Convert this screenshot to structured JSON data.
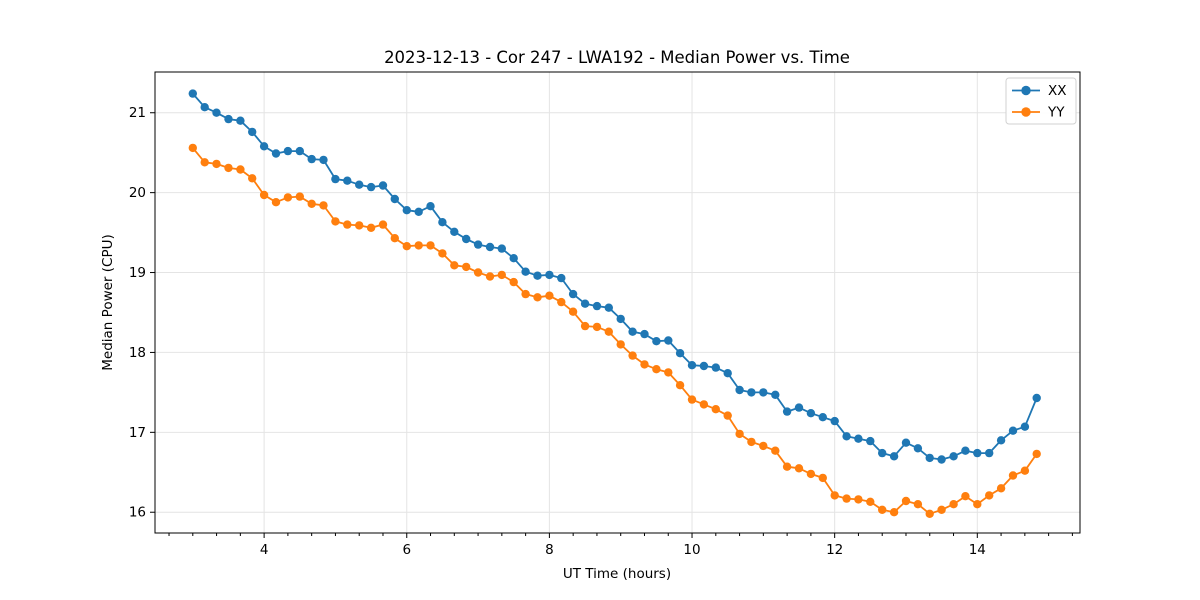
{
  "page": {
    "background": "#ffffff"
  },
  "chart": {
    "title": "2023-12-13 - Cor 247 - LWA192 - Median Power vs. Time",
    "xlabel": "UT Time (hours)",
    "ylabel": "Median Power (CPU)"
  },
  "chart_data": {
    "type": "line",
    "title": "2023-12-13 - Cor 247 - LWA192 - Median Power vs. Time",
    "xlabel": "UT Time (hours)",
    "ylabel": "Median Power (CPU)",
    "x": [
      3.0,
      3.167,
      3.333,
      3.5,
      3.667,
      3.833,
      4.0,
      4.167,
      4.333,
      4.5,
      4.667,
      4.833,
      5.0,
      5.167,
      5.333,
      5.5,
      5.667,
      5.833,
      6.0,
      6.167,
      6.333,
      6.5,
      6.667,
      6.833,
      7.0,
      7.167,
      7.333,
      7.5,
      7.667,
      7.833,
      8.0,
      8.167,
      8.333,
      8.5,
      8.667,
      8.833,
      9.0,
      9.167,
      9.333,
      9.5,
      9.667,
      9.833,
      10.0,
      10.167,
      10.333,
      10.5,
      10.667,
      10.833,
      11.0,
      11.167,
      11.333,
      11.5,
      11.667,
      11.833,
      12.0,
      12.167,
      12.333,
      12.5,
      12.667,
      12.833,
      13.0,
      13.167,
      13.333,
      13.5,
      13.667,
      13.833,
      14.0,
      14.167,
      14.333,
      14.5,
      14.667,
      14.833
    ],
    "series": [
      {
        "name": "XX",
        "color": "#1f77b4",
        "values": [
          21.24,
          21.07,
          21.0,
          20.92,
          20.9,
          20.76,
          20.58,
          20.49,
          20.52,
          20.52,
          20.42,
          20.41,
          20.17,
          20.15,
          20.1,
          20.07,
          20.09,
          19.92,
          19.78,
          19.76,
          19.83,
          19.63,
          19.51,
          19.42,
          19.35,
          19.32,
          19.3,
          19.18,
          19.01,
          18.96,
          18.97,
          18.93,
          18.73,
          18.61,
          18.58,
          18.56,
          18.42,
          18.26,
          18.23,
          18.14,
          18.15,
          17.99,
          17.84,
          17.83,
          17.81,
          17.74,
          17.53,
          17.5,
          17.5,
          17.47,
          17.26,
          17.31,
          17.24,
          17.19,
          17.14,
          16.95,
          16.92,
          16.89,
          16.74,
          16.7,
          16.87,
          16.8,
          16.68,
          16.66,
          16.7,
          16.77,
          16.74,
          16.74,
          16.9,
          17.02,
          17.07,
          17.43
        ]
      },
      {
        "name": "YY",
        "color": "#ff7f0e",
        "values": [
          20.56,
          20.38,
          20.36,
          20.31,
          20.29,
          20.18,
          19.97,
          19.88,
          19.94,
          19.95,
          19.86,
          19.84,
          19.64,
          19.6,
          19.59,
          19.56,
          19.6,
          19.43,
          19.33,
          19.34,
          19.34,
          19.24,
          19.09,
          19.07,
          19.0,
          18.95,
          18.97,
          18.88,
          18.73,
          18.69,
          18.71,
          18.63,
          18.51,
          18.33,
          18.32,
          18.26,
          18.1,
          17.96,
          17.85,
          17.79,
          17.75,
          17.59,
          17.41,
          17.35,
          17.29,
          17.21,
          16.98,
          16.88,
          16.83,
          16.77,
          16.57,
          16.55,
          16.48,
          16.43,
          16.21,
          16.17,
          16.16,
          16.13,
          16.03,
          16.0,
          16.14,
          16.1,
          15.98,
          16.03,
          16.1,
          16.2,
          16.1,
          16.21,
          16.3,
          16.46,
          16.52,
          16.73
        ]
      }
    ],
    "xlim": [
      2.47,
      15.44
    ],
    "ylim": [
      15.74,
      21.51
    ],
    "x_major_ticks": [
      4,
      6,
      8,
      10,
      12,
      14
    ],
    "x_minor_tick_step": 0.33333,
    "y_major_ticks": [
      16,
      17,
      18,
      19,
      20,
      21
    ],
    "grid": true,
    "grid_color": "#e4e4e4",
    "spine_color": "#000000",
    "legend": {
      "position": "upper right",
      "labels": [
        "XX",
        "YY"
      ],
      "border_color": "#d2d2d2",
      "background": "#ffffff"
    },
    "line_width": 1.8,
    "marker": "o",
    "marker_radius": 4.2
  }
}
